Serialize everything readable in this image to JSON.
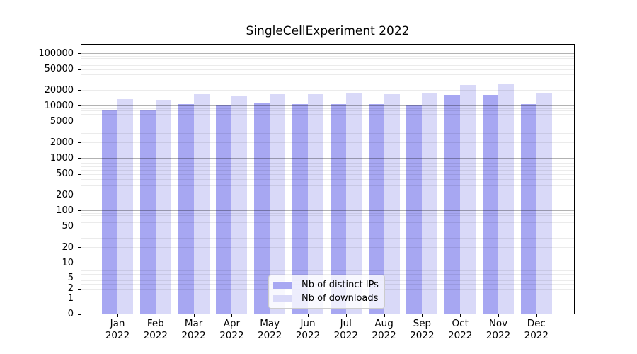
{
  "chart_data": {
    "type": "bar",
    "title": "SingleCellExperiment 2022",
    "categories": [
      "Jan",
      "Feb",
      "Mar",
      "Apr",
      "May",
      "Jun",
      "Jul",
      "Aug",
      "Sep",
      "Oct",
      "Nov",
      "Dec"
    ],
    "year": "2022",
    "series": [
      {
        "name": "Nb of distinct IPs",
        "color": "#a7a7f2",
        "values": [
          8050,
          8500,
          10600,
          10200,
          11200,
          10800,
          10700,
          10600,
          10500,
          16300,
          16100,
          10800
        ]
      },
      {
        "name": "Nb of downloads",
        "color": "#d9d9f8",
        "values": [
          13350,
          13100,
          16600,
          15300,
          16450,
          16800,
          17300,
          16500,
          17000,
          25100,
          26200,
          17900
        ]
      }
    ],
    "y_axis": {
      "ticks": [
        100000,
        50000,
        20000,
        10000,
        5000,
        2000,
        1000,
        500,
        200,
        100,
        50,
        20,
        10,
        5,
        2,
        1,
        0
      ],
      "scale": "log above 10, compressed linear region between 0 and 10",
      "ylim": [
        0,
        151000
      ]
    },
    "grid": {
      "major": "horizontal lines at powers of ten",
      "minor": "horizontal lines at 2-9 within each decade"
    },
    "legend": {
      "position": "lower center inside plot"
    }
  }
}
